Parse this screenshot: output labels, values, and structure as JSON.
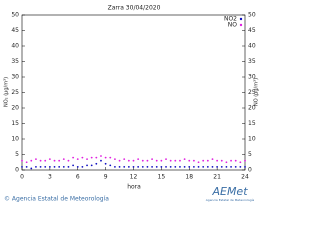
{
  "chart_data": {
    "type": "scatter",
    "title": "Zarra 30/04/2020",
    "xlabel": "hora",
    "ylabel": "NO₂ (µg/m³)",
    "y2label": "NO (µg/m³)",
    "x": [
      0,
      0.5,
      1,
      1.5,
      2,
      2.5,
      3,
      3.5,
      4,
      4.5,
      5,
      5.5,
      6,
      6.5,
      7,
      7.5,
      8,
      8.5,
      9,
      9.5,
      10,
      10.5,
      11,
      11.5,
      12,
      12.5,
      13,
      13.5,
      14,
      14.5,
      15,
      15.5,
      16,
      16.5,
      17,
      17.5,
      18,
      18.5,
      19,
      19.5,
      20,
      20.5,
      21,
      21.5,
      22,
      22.5,
      23,
      23.5,
      24
    ],
    "series": [
      {
        "name": "NO2",
        "color": "#1010c0",
        "axis": "y",
        "values": [
          1,
          1,
          0.5,
          1,
          1,
          1,
          1,
          1,
          1,
          1,
          1,
          1.5,
          1,
          1,
          1.5,
          1.5,
          2,
          3,
          2,
          1.5,
          1,
          1,
          1,
          1,
          1,
          1,
          1,
          1,
          1,
          1,
          1,
          1,
          1,
          1,
          1,
          1,
          1,
          1,
          1,
          1,
          1,
          1,
          1,
          1,
          1,
          1,
          1,
          1,
          1
        ]
      },
      {
        "name": "NO",
        "color": "#e020e0",
        "axis": "y2",
        "values": [
          3,
          2.5,
          3,
          3.5,
          3,
          3,
          3.5,
          3,
          3,
          3.5,
          3,
          4,
          3.5,
          4,
          3.5,
          4,
          4,
          4.5,
          4,
          4,
          3.5,
          3,
          3.5,
          3,
          3,
          3.5,
          3,
          3,
          3.5,
          3,
          3,
          3.5,
          3,
          3,
          3,
          3.5,
          3,
          3,
          2.5,
          3,
          3,
          3.5,
          3,
          3,
          2.5,
          3,
          3,
          2.5,
          3
        ]
      }
    ],
    "xlim": [
      0,
      24
    ],
    "xticks": [
      0,
      3,
      6,
      9,
      12,
      15,
      18,
      21,
      24
    ],
    "ylim": [
      0,
      50
    ],
    "yticks": [
      0,
      5,
      10,
      15,
      20,
      25,
      30,
      35,
      40,
      45,
      50
    ],
    "y2lim": [
      0,
      50
    ],
    "y2ticks": [
      0,
      5,
      10,
      15,
      20,
      25,
      30,
      35,
      40,
      45,
      50
    ],
    "legend": "upper right",
    "footer": "© Agencia Estatal de Meteorología",
    "logo": "AEMet",
    "logo_caption": "Agencia Estatal de Meteorología"
  }
}
